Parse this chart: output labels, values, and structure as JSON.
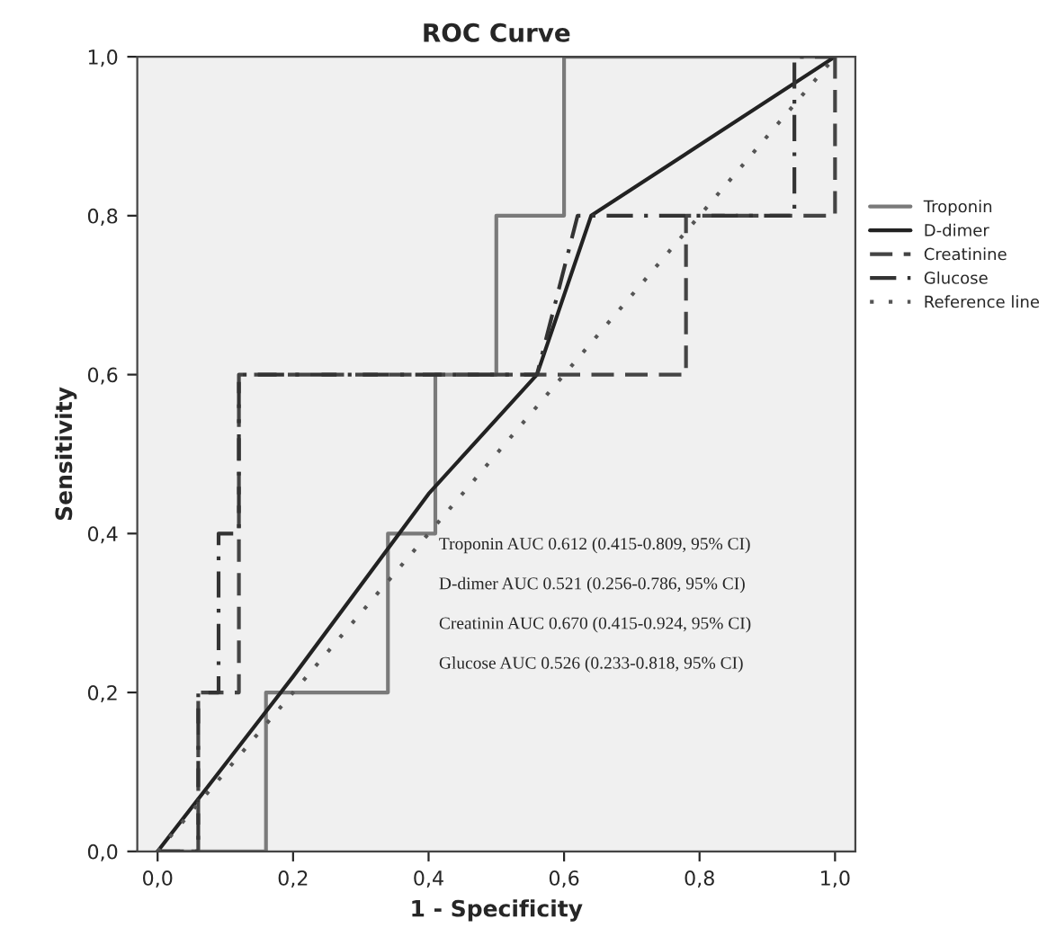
{
  "chart_data": {
    "type": "line",
    "title": "ROC Curve",
    "xlabel": "1 - Specificity",
    "ylabel": "Sensitivity",
    "series": [
      {
        "name": "Troponin",
        "color": "#7a7a7a",
        "line_style": "solid",
        "x": [
          0,
          0.16,
          0.16,
          0.34,
          0.34,
          0.41,
          0.41,
          0.5,
          0.5,
          0.6,
          0.6,
          1
        ],
        "values": [
          0,
          0,
          0.2,
          0.2,
          0.4,
          0.4,
          0.6,
          0.6,
          0.8,
          0.8,
          1,
          1
        ]
      },
      {
        "name": "D-dimer",
        "color": "#222222",
        "line_style": "solid",
        "x": [
          0,
          0.2,
          0.4,
          0.56,
          0.64,
          1
        ],
        "values": [
          0,
          0.22,
          0.45,
          0.6,
          0.8,
          1
        ]
      },
      {
        "name": "Creatinine",
        "color": "#444444",
        "line_style": "dashed",
        "x": [
          0,
          0.06,
          0.06,
          0.12,
          0.12,
          0.78,
          0.78,
          1,
          1
        ],
        "values": [
          0,
          0,
          0.2,
          0.2,
          0.6,
          0.6,
          0.8,
          0.8,
          1
        ]
      },
      {
        "name": "Glucose",
        "color": "#333333",
        "line_style": "dashdot",
        "x": [
          0,
          0.06,
          0.06,
          0.09,
          0.09,
          0.12,
          0.12,
          0.56,
          0.62,
          0.94,
          0.94,
          1
        ],
        "values": [
          0,
          0,
          0.2,
          0.2,
          0.4,
          0.4,
          0.6,
          0.6,
          0.8,
          0.8,
          1,
          1
        ]
      },
      {
        "name": "Reference line",
        "color": "#555555",
        "line_style": "dotted",
        "x": [
          0,
          1
        ],
        "values": [
          0,
          1
        ]
      }
    ],
    "xlim": [
      -0.03,
      1.03
    ],
    "ylim": [
      0,
      1
    ],
    "xticks": [
      {
        "value": 0,
        "label": "0,0"
      },
      {
        "value": 0.2,
        "label": "0,2"
      },
      {
        "value": 0.4,
        "label": "0,4"
      },
      {
        "value": 0.6,
        "label": "0,6"
      },
      {
        "value": 0.8,
        "label": "0,8"
      },
      {
        "value": 1,
        "label": "1,0"
      }
    ],
    "yticks": [
      {
        "value": 0,
        "label": "0,0"
      },
      {
        "value": 0.2,
        "label": "0,2"
      },
      {
        "value": 0.4,
        "label": "0,4"
      },
      {
        "value": 0.6,
        "label": "0,6"
      },
      {
        "value": 0.8,
        "label": "0,8"
      },
      {
        "value": 1,
        "label": "1,0"
      }
    ],
    "grid": false,
    "legend": "right",
    "annotations": [
      "Troponin AUC 0.612 (0.415-0.809, 95% CI)",
      "D-dimer AUC 0.521 (0.256-0.786, 95% CI)",
      "Creatinin AUC 0.670 (0.415-0.924, 95% CI)",
      "Glucose AUC 0.526 (0.233-0.818, 95% CI)"
    ]
  }
}
